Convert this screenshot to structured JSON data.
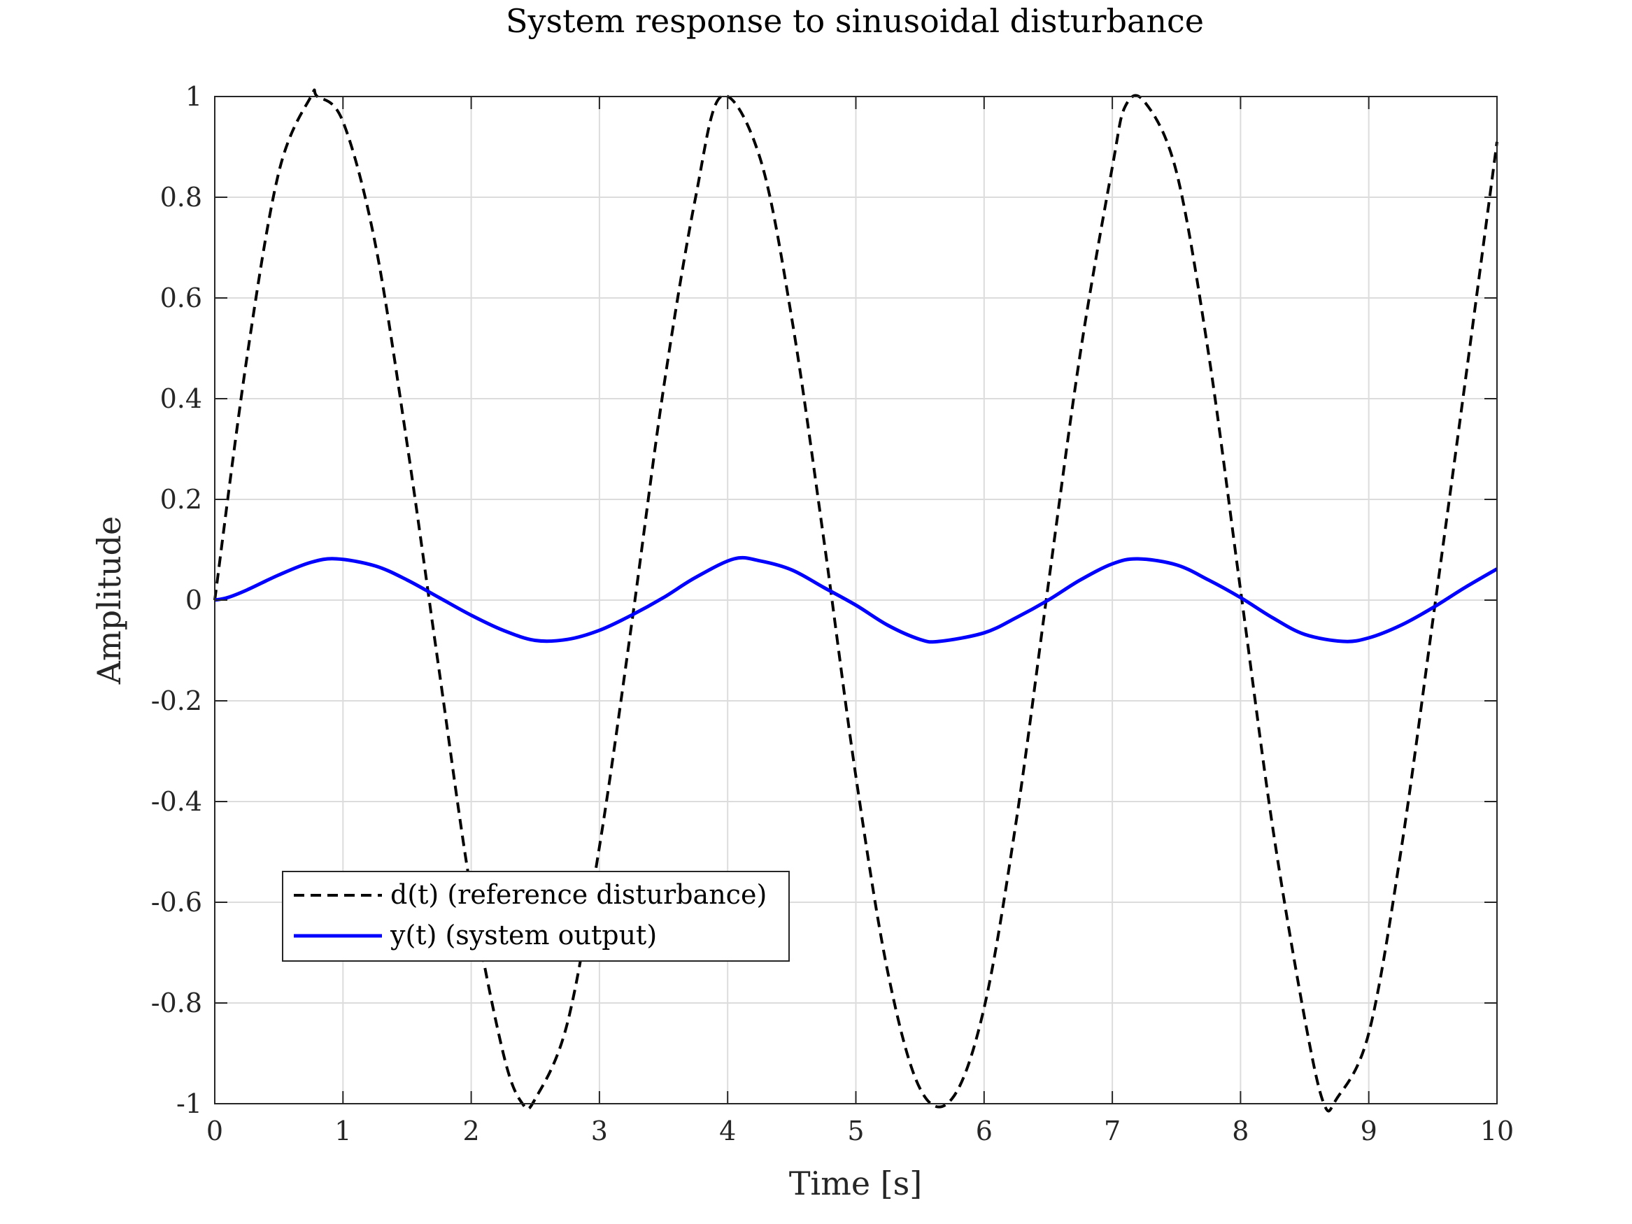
{
  "chart_data": {
    "type": "line",
    "title": "System response to sinusoidal disturbance",
    "xlabel": "Time [s]",
    "ylabel": "Amplitude",
    "xlim": [
      0,
      10
    ],
    "ylim": [
      -1,
      1
    ],
    "xticks": [
      0,
      1,
      2,
      3,
      4,
      5,
      6,
      7,
      8,
      9,
      10
    ],
    "xtick_labels": [
      "0",
      "1",
      "2",
      "3",
      "4",
      "5",
      "6",
      "7",
      "8",
      "9",
      "10"
    ],
    "yticks": [
      -1,
      -0.8,
      -0.6,
      -0.4,
      -0.2,
      0,
      0.2,
      0.4,
      0.6,
      0.8,
      1
    ],
    "ytick_labels": [
      "-1",
      "-0.8",
      "-0.6",
      "-0.4",
      "-0.2",
      "0",
      "0.2",
      "0.4",
      "0.6",
      "0.8",
      "1"
    ],
    "grid": true,
    "legend_position": "bottom-left",
    "series": [
      {
        "name": "d(t) (reference disturbance)",
        "color": "#000000",
        "style": "dashed",
        "x": [
          0,
          0.25,
          0.5,
          0.75,
          0.8,
          1.0,
          1.25,
          1.5,
          1.75,
          2.0,
          2.25,
          2.4,
          2.5,
          2.75,
          3.0,
          3.25,
          3.5,
          3.75,
          3.95,
          4.25,
          4.5,
          4.75,
          5.0,
          5.25,
          5.5,
          5.75,
          6.0,
          6.25,
          6.5,
          6.75,
          7.0,
          7.1,
          7.25,
          7.5,
          7.75,
          8.0,
          8.25,
          8.5,
          8.65,
          8.75,
          9.0,
          9.25,
          9.5,
          9.75,
          10.0
        ],
        "y": [
          0,
          0.48,
          0.85,
          1.0,
          1.0,
          0.95,
          0.71,
          0.31,
          -0.14,
          -0.58,
          -0.9,
          -1.0,
          -0.99,
          -0.84,
          -0.49,
          -0.05,
          0.42,
          0.8,
          1.0,
          0.88,
          0.56,
          0.12,
          -0.35,
          -0.74,
          -0.97,
          -0.99,
          -0.81,
          -0.44,
          0.03,
          0.49,
          0.86,
          0.98,
          0.99,
          0.85,
          0.49,
          0.02,
          -0.45,
          -0.83,
          -1.0,
          -0.99,
          -0.86,
          -0.5,
          -0.04,
          0.43,
          0.91
        ]
      },
      {
        "name": "y(t) (system output)",
        "color": "#0000ff",
        "style": "solid",
        "x": [
          0,
          0.1,
          0.25,
          0.5,
          0.75,
          0.95,
          1.25,
          1.5,
          1.75,
          2.0,
          2.25,
          2.5,
          2.75,
          3.0,
          3.25,
          3.5,
          3.75,
          4.05,
          4.25,
          4.5,
          4.75,
          5.0,
          5.25,
          5.5,
          5.65,
          6.0,
          6.25,
          6.5,
          6.75,
          7.0,
          7.2,
          7.5,
          7.75,
          8.0,
          8.25,
          8.5,
          8.8,
          9.0,
          9.25,
          9.5,
          9.75,
          10.0
        ],
        "y": [
          0,
          0.005,
          0.02,
          0.05,
          0.075,
          0.082,
          0.068,
          0.04,
          0.005,
          -0.03,
          -0.06,
          -0.08,
          -0.078,
          -0.06,
          -0.03,
          0.005,
          0.045,
          0.082,
          0.078,
          0.06,
          0.025,
          -0.01,
          -0.05,
          -0.078,
          -0.082,
          -0.065,
          -0.035,
          0.0,
          0.04,
          0.072,
          0.082,
          0.07,
          0.04,
          0.005,
          -0.035,
          -0.068,
          -0.082,
          -0.075,
          -0.05,
          -0.015,
          0.025,
          0.062
        ]
      }
    ]
  }
}
